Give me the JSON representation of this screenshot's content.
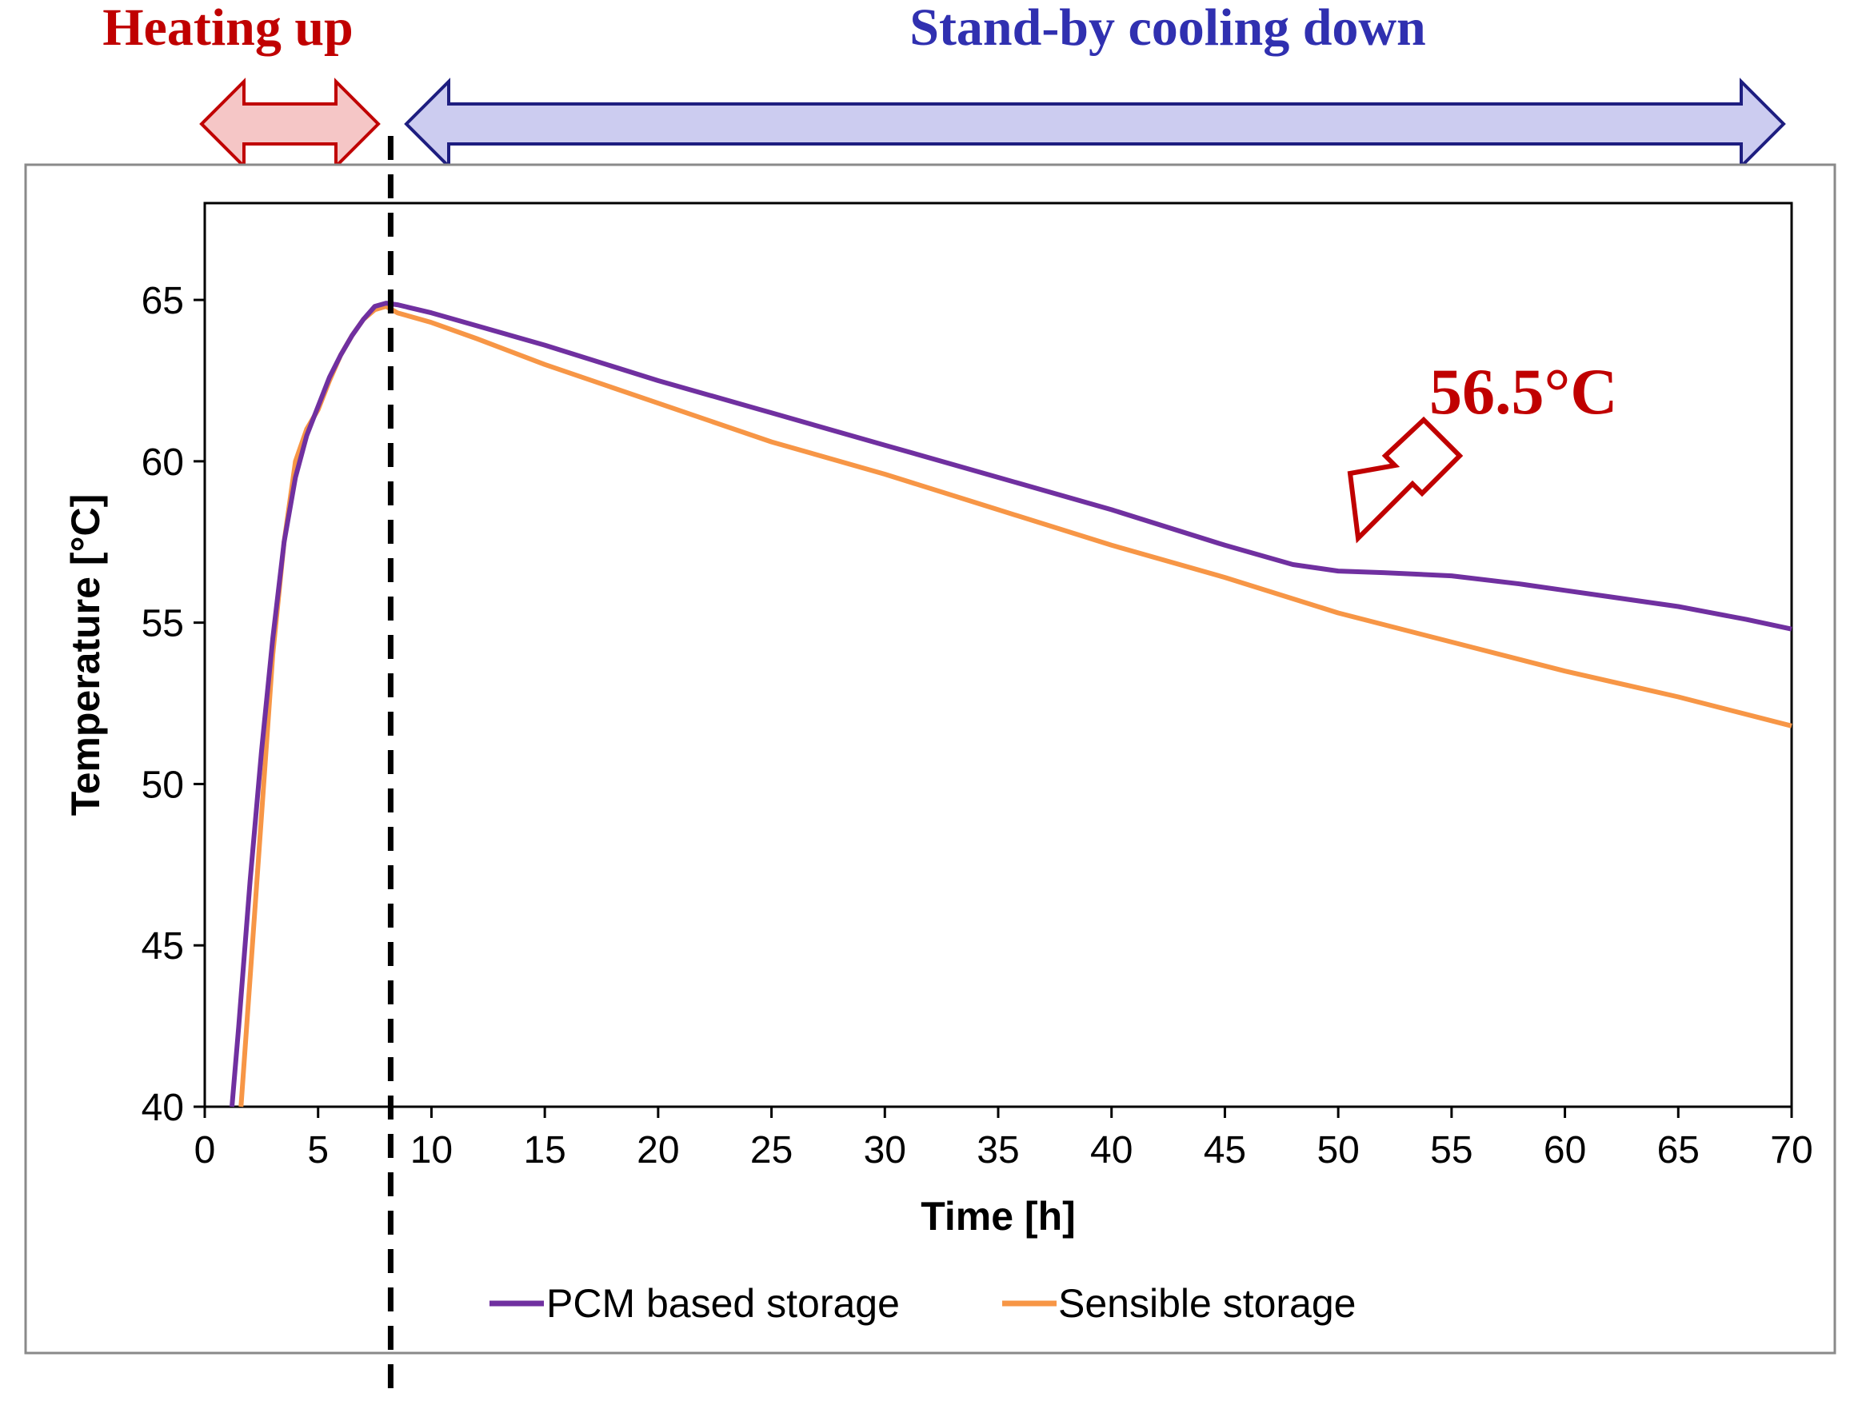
{
  "phases": {
    "heating": {
      "label": "Heating up",
      "color": "#c00000",
      "arrow_fill": "#f5c6c6"
    },
    "cooling": {
      "label": "Stand-by cooling down",
      "color": "#3030b0",
      "arrow_fill": "#ccccf0",
      "arrow_stroke": "#1e1e80"
    }
  },
  "chart_data": {
    "type": "line",
    "title": "",
    "xlabel": "Time [h]",
    "ylabel": "Temperature [°C]",
    "xlim": [
      0,
      70
    ],
    "ylim": [
      40,
      68
    ],
    "xticks": [
      0,
      5,
      10,
      15,
      20,
      25,
      30,
      35,
      40,
      45,
      50,
      55,
      60,
      65,
      70
    ],
    "yticks": [
      40,
      45,
      50,
      55,
      60,
      65
    ],
    "grid": false,
    "legend_position": "bottom",
    "phase_boundary_x": 8.2,
    "series": [
      {
        "name": "PCM based storage",
        "color": "#7030a0",
        "x": [
          1.2,
          1.5,
          2.0,
          2.5,
          3.0,
          3.5,
          4.0,
          4.5,
          5.0,
          5.5,
          6.0,
          6.5,
          7.0,
          7.5,
          8.0,
          8.5,
          10,
          12,
          15,
          20,
          25,
          30,
          35,
          40,
          45,
          48,
          50,
          52,
          55,
          58,
          60,
          62,
          65,
          68,
          70
        ],
        "y": [
          40.0,
          42.5,
          47.0,
          51.0,
          54.5,
          57.5,
          59.5,
          60.8,
          61.7,
          62.6,
          63.3,
          63.9,
          64.4,
          64.8,
          64.9,
          64.85,
          64.6,
          64.2,
          63.6,
          62.5,
          61.5,
          60.5,
          59.5,
          58.5,
          57.4,
          56.8,
          56.6,
          56.55,
          56.45,
          56.2,
          56.0,
          55.8,
          55.5,
          55.1,
          54.8
        ]
      },
      {
        "name": "Sensible storage",
        "color": "#f79646",
        "x": [
          1.6,
          2.0,
          2.5,
          3.0,
          3.5,
          4.0,
          4.5,
          5.0,
          5.5,
          6.0,
          6.5,
          7.0,
          7.5,
          8.0,
          8.5,
          10,
          12,
          15,
          20,
          25,
          30,
          35,
          40,
          45,
          50,
          55,
          60,
          65,
          70
        ],
        "y": [
          40.0,
          44.0,
          49.0,
          54.0,
          57.5,
          60.0,
          61.0,
          61.6,
          62.5,
          63.3,
          63.9,
          64.4,
          64.7,
          64.8,
          64.6,
          64.3,
          63.8,
          63.0,
          61.8,
          60.6,
          59.6,
          58.5,
          57.4,
          56.4,
          55.3,
          54.4,
          53.5,
          52.7,
          51.8
        ]
      }
    ],
    "annotations": [
      {
        "text": "56.5°C",
        "x": 50,
        "y": 56.6,
        "color": "#c00000"
      }
    ]
  }
}
